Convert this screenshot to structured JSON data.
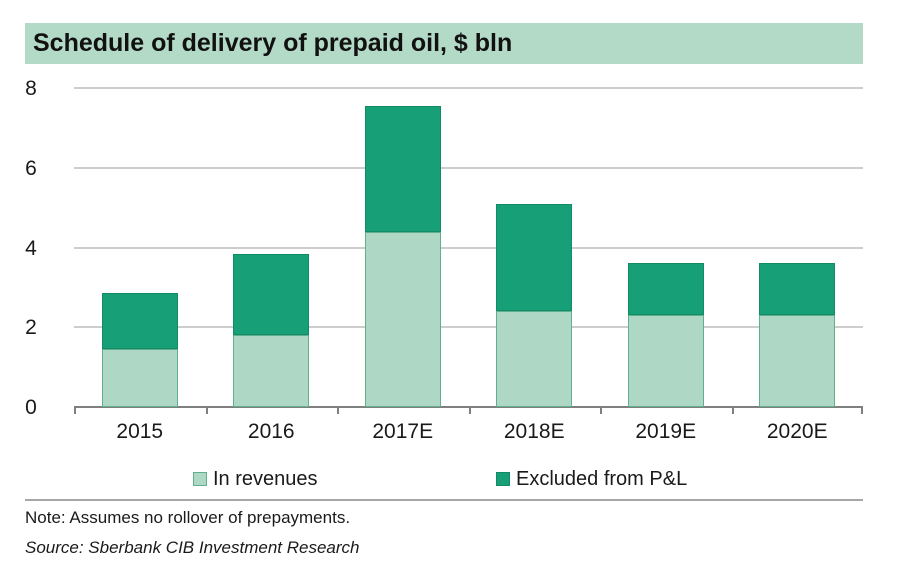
{
  "title": "Schedule of delivery of prepaid oil, $ bln",
  "note": "Note: Assumes no rollover of prepayments.",
  "source": "Source: Sberbank CIB Investment Research",
  "colors": {
    "banner_bg": "#b3d9c7",
    "light_green": "#aed8c5",
    "dark_green": "#17a077",
    "light_border": "#5fb08d",
    "dark_border": "#128a66",
    "gridline": "#cdcdcd",
    "axis": "#7f7f7f",
    "separator": "#a6a6a6",
    "text": "#1a1a1a"
  },
  "legend": [
    {
      "label": "In revenues",
      "color": "#aed8c5",
      "border": "#5fb08d",
      "x": 193
    },
    {
      "label": "Excluded from P&L",
      "color": "#17a077",
      "border": "#128a66",
      "x": 496
    }
  ],
  "chart_data": {
    "type": "bar",
    "stacked": true,
    "title": "Schedule of delivery of prepaid oil, $ bln",
    "categories": [
      "2015",
      "2016",
      "2017E",
      "2018E",
      "2019E",
      "2020E"
    ],
    "series": [
      {
        "name": "In revenues",
        "values": [
          1.45,
          1.8,
          4.4,
          2.4,
          2.3,
          2.3
        ]
      },
      {
        "name": "Excluded from P&L",
        "values": [
          1.4,
          2.05,
          3.15,
          2.7,
          1.3,
          1.3
        ]
      }
    ],
    "totals": [
      2.85,
      3.85,
      7.55,
      5.1,
      3.6,
      3.6
    ],
    "xlabel": "",
    "ylabel": "",
    "ylim": [
      0,
      8
    ],
    "yticks": [
      0,
      2,
      4,
      6,
      8
    ],
    "grid": "horizontal",
    "legend_position": "bottom"
  }
}
